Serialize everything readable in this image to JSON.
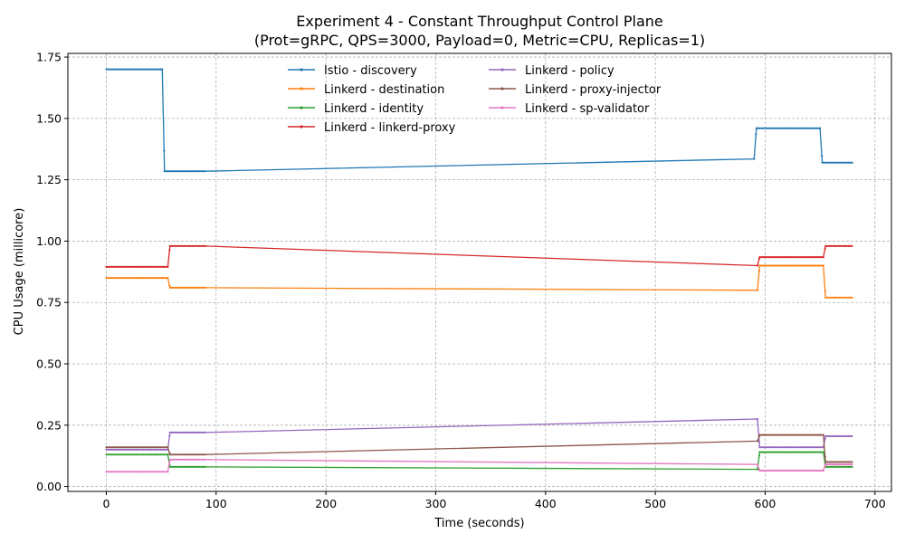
{
  "chart_data": {
    "type": "line",
    "title": "Experiment 4 - Constant Throughput Control Plane",
    "subtitle": "(Prot=gRPC, QPS=3000, Payload=0, Metric=CPU, Replicas=1)",
    "xlabel": "Time (seconds)",
    "ylabel": "CPU Usage (millicore)",
    "xlim": [
      -35,
      715
    ],
    "ylim": [
      -0.02,
      1.765
    ],
    "xticks": [
      0,
      100,
      200,
      300,
      400,
      500,
      600,
      700
    ],
    "yticks": [
      0.0,
      0.25,
      0.5,
      0.75,
      1.0,
      1.25,
      1.5,
      1.75
    ],
    "ytick_labels": [
      "0.00",
      "0.25",
      "0.50",
      "0.75",
      "1.00",
      "1.25",
      "1.50",
      "1.75"
    ],
    "grid": true,
    "legend": "top-center, two columns",
    "series": [
      {
        "name": "Istio - discovery",
        "color": "#1f77b4",
        "points": [
          [
            0,
            1.7
          ],
          [
            51,
            1.7
          ],
          [
            53,
            1.285
          ],
          [
            90,
            1.285
          ],
          [
            590,
            1.335
          ],
          [
            592,
            1.46
          ],
          [
            650,
            1.46
          ],
          [
            652,
            1.32
          ],
          [
            680,
            1.32
          ]
        ]
      },
      {
        "name": "Linkerd - destination",
        "color": "#ff7f0e",
        "points": [
          [
            0,
            0.85
          ],
          [
            56,
            0.85
          ],
          [
            58,
            0.81
          ],
          [
            90,
            0.81
          ],
          [
            593,
            0.8
          ],
          [
            595,
            0.9
          ],
          [
            653,
            0.9
          ],
          [
            655,
            0.77
          ],
          [
            680,
            0.77
          ]
        ]
      },
      {
        "name": "Linkerd - identity",
        "color": "#2ca02c",
        "points": [
          [
            0,
            0.13
          ],
          [
            56,
            0.13
          ],
          [
            58,
            0.08
          ],
          [
            90,
            0.08
          ],
          [
            593,
            0.07
          ],
          [
            595,
            0.14
          ],
          [
            653,
            0.14
          ],
          [
            655,
            0.08
          ],
          [
            680,
            0.08
          ]
        ]
      },
      {
        "name": "Linkerd - linkerd-proxy",
        "color": "#d62728",
        "points": [
          [
            0,
            0.895
          ],
          [
            56,
            0.895
          ],
          [
            58,
            0.98
          ],
          [
            90,
            0.98
          ],
          [
            593,
            0.9
          ],
          [
            595,
            0.935
          ],
          [
            653,
            0.935
          ],
          [
            655,
            0.98
          ],
          [
            680,
            0.98
          ]
        ]
      },
      {
        "name": "Linkerd - policy",
        "color": "#9467bd",
        "points": [
          [
            0,
            0.15
          ],
          [
            56,
            0.15
          ],
          [
            58,
            0.22
          ],
          [
            90,
            0.22
          ],
          [
            593,
            0.275
          ],
          [
            595,
            0.16
          ],
          [
            653,
            0.16
          ],
          [
            655,
            0.205
          ],
          [
            680,
            0.205
          ]
        ]
      },
      {
        "name": "Linkerd - proxy-injector",
        "color": "#8c564b",
        "points": [
          [
            0,
            0.16
          ],
          [
            56,
            0.16
          ],
          [
            58,
            0.13
          ],
          [
            90,
            0.13
          ],
          [
            593,
            0.185
          ],
          [
            595,
            0.21
          ],
          [
            653,
            0.21
          ],
          [
            655,
            0.1
          ],
          [
            680,
            0.1
          ]
        ]
      },
      {
        "name": "Linkerd - sp-validator",
        "color": "#e377c2",
        "points": [
          [
            0,
            0.06
          ],
          [
            56,
            0.06
          ],
          [
            58,
            0.11
          ],
          [
            90,
            0.11
          ],
          [
            593,
            0.09
          ],
          [
            595,
            0.065
          ],
          [
            653,
            0.065
          ],
          [
            655,
            0.09
          ],
          [
            680,
            0.09
          ]
        ]
      }
    ]
  }
}
